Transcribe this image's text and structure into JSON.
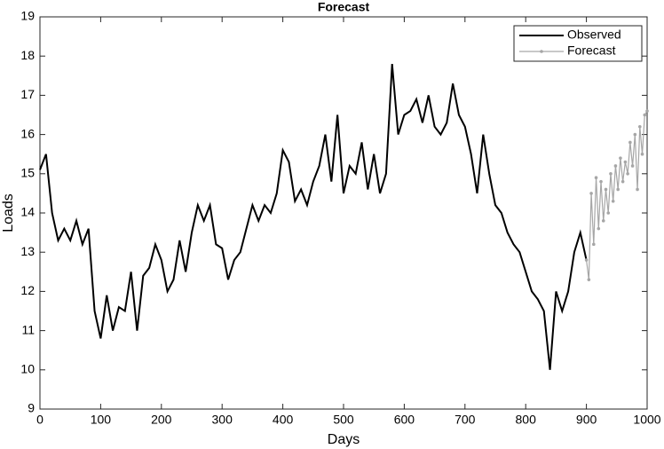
{
  "chart_data": {
    "type": "line",
    "title": "Forecast",
    "xlabel": "Days",
    "ylabel": "Loads",
    "xlim": [
      0,
      1000
    ],
    "xticks": [
      0,
      100,
      200,
      300,
      400,
      500,
      600,
      700,
      800,
      900,
      1000
    ],
    "ylim": [
      9,
      19
    ],
    "yticks": [
      9,
      10,
      11,
      12,
      13,
      14,
      15,
      16,
      17,
      18,
      19
    ],
    "legend": "upper right",
    "grid": false,
    "series": [
      {
        "name": "Observed",
        "color": "#000000",
        "markers": false,
        "x": [
          0,
          10,
          20,
          30,
          40,
          50,
          60,
          70,
          80,
          90,
          100,
          110,
          120,
          130,
          140,
          150,
          160,
          170,
          180,
          190,
          200,
          210,
          220,
          230,
          240,
          250,
          260,
          270,
          280,
          290,
          300,
          310,
          320,
          330,
          340,
          350,
          360,
          370,
          380,
          390,
          400,
          410,
          420,
          430,
          440,
          450,
          460,
          470,
          480,
          490,
          500,
          510,
          520,
          530,
          540,
          550,
          560,
          570,
          580,
          590,
          600,
          610,
          620,
          630,
          640,
          650,
          660,
          670,
          680,
          690,
          700,
          710,
          720,
          730,
          740,
          750,
          760,
          770,
          780,
          790,
          800,
          810,
          820,
          830,
          840,
          850,
          860,
          870,
          880,
          890,
          900
        ],
        "values": [
          15.1,
          15.5,
          14.0,
          13.3,
          13.6,
          13.3,
          13.8,
          13.2,
          13.6,
          11.5,
          10.8,
          11.9,
          11.0,
          11.6,
          11.5,
          12.5,
          11.0,
          12.4,
          12.6,
          13.2,
          12.8,
          12.0,
          12.3,
          13.3,
          12.5,
          13.5,
          14.2,
          13.8,
          14.2,
          13.2,
          13.1,
          12.3,
          12.8,
          13.0,
          13.6,
          14.2,
          13.8,
          14.2,
          14.0,
          14.5,
          15.6,
          15.3,
          14.3,
          14.6,
          14.2,
          14.8,
          15.2,
          16.0,
          14.8,
          16.5,
          14.5,
          15.2,
          15.0,
          15.8,
          14.6,
          15.5,
          14.5,
          15.0,
          17.8,
          16.0,
          16.5,
          16.6,
          16.9,
          16.3,
          17.0,
          16.2,
          16.0,
          16.3,
          17.3,
          16.5,
          16.2,
          15.5,
          14.5,
          16.0,
          15.0,
          14.2,
          14.0,
          13.5,
          13.2,
          13.0,
          12.5,
          12.0,
          11.8,
          11.5,
          10.0,
          12.0,
          11.5,
          12.0,
          13.0,
          13.5,
          12.8
        ]
      },
      {
        "name": "Forecast",
        "color": "#a6a6a6",
        "markers": true,
        "x": [
          900,
          904,
          908,
          912,
          916,
          920,
          924,
          928,
          932,
          936,
          940,
          944,
          948,
          952,
          956,
          960,
          964,
          968,
          972,
          976,
          980,
          984,
          988,
          992,
          996,
          1000
        ],
        "values": [
          12.8,
          12.3,
          14.5,
          13.2,
          14.9,
          13.6,
          14.8,
          13.8,
          14.6,
          14.0,
          15.0,
          14.3,
          15.2,
          14.6,
          15.4,
          14.8,
          15.3,
          15.0,
          15.8,
          15.2,
          16.0,
          14.6,
          16.2,
          15.5,
          16.5,
          16.6
        ]
      }
    ]
  }
}
